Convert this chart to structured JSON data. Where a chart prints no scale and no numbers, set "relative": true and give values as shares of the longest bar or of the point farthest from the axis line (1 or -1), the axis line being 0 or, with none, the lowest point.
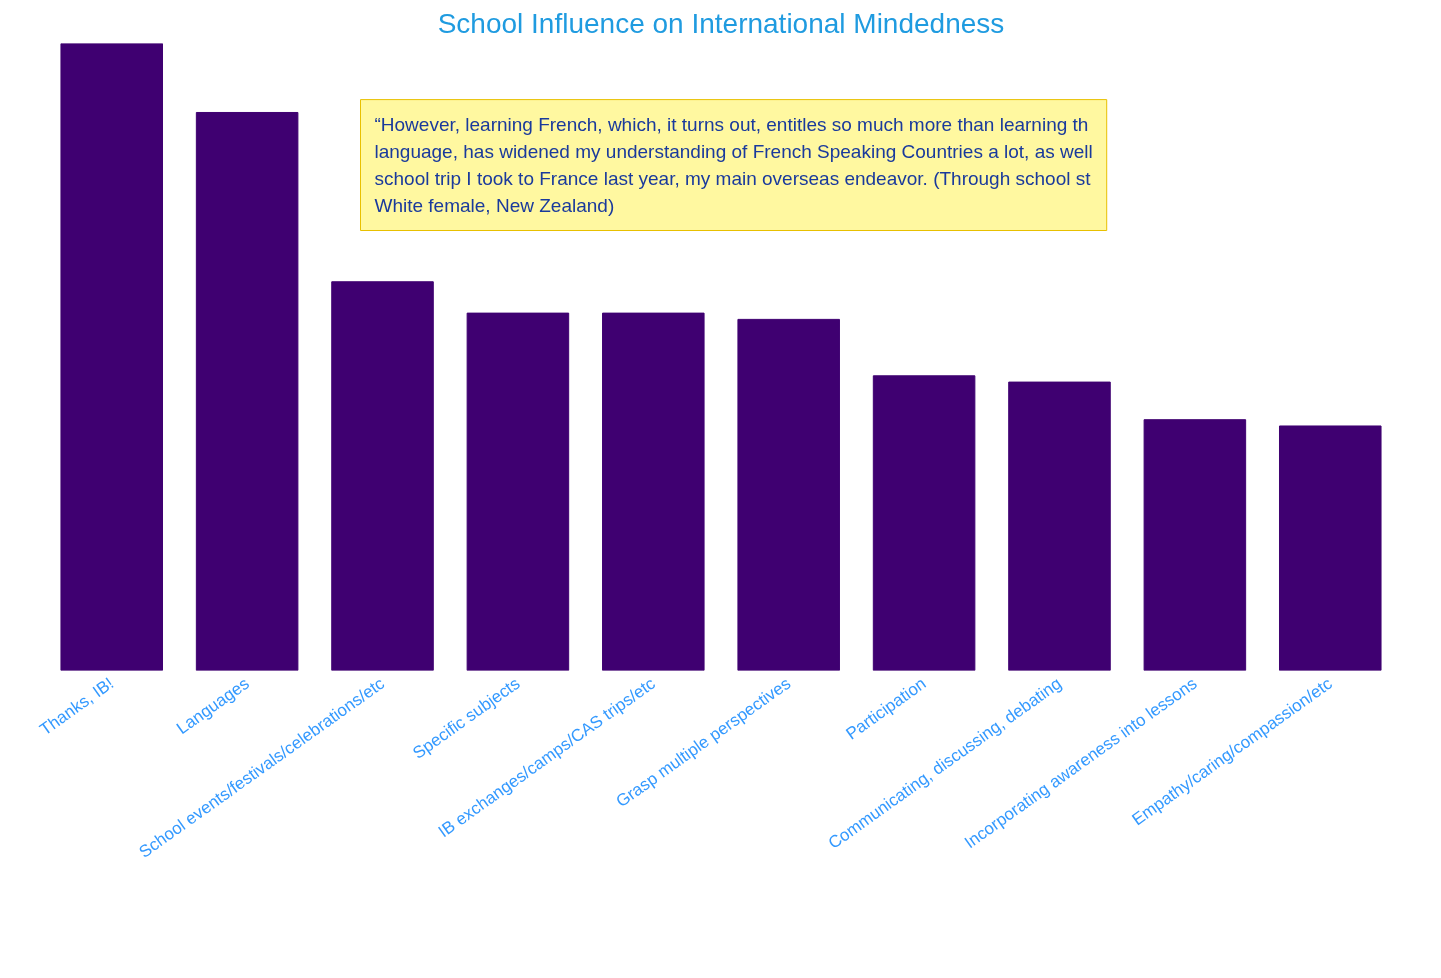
{
  "chart_data": {
    "type": "bar",
    "title": "School Influence on International Mindedness",
    "categories": [
      "Thanks, IB!",
      "Languages",
      "School events/festivals/celebrations/etc",
      "Specific subjects",
      "IB exchanges/camps/CAS trips/etc",
      "Grasp multiple perspectives",
      "Participation",
      "Communicating, discussing, debating",
      "Incorporating awareness into lessons",
      "Empathy/caring/compassion/etc"
    ],
    "values": [
      1,
      0.89,
      0.62,
      0.57,
      0.57,
      0.56,
      0.47,
      0.46,
      0.4,
      0.39
    ],
    "color": "#3f0071",
    "relative": true,
    "annotations": [
      "“However, learning French, which, it turns out, entitles so much more than learning th\nlanguage, has widened my understanding of French Speaking Countries a lot, as well\nschool trip I took to France last year, my main overseas endeavor. (Through school st\nWhite female, New Zealand)"
    ]
  }
}
